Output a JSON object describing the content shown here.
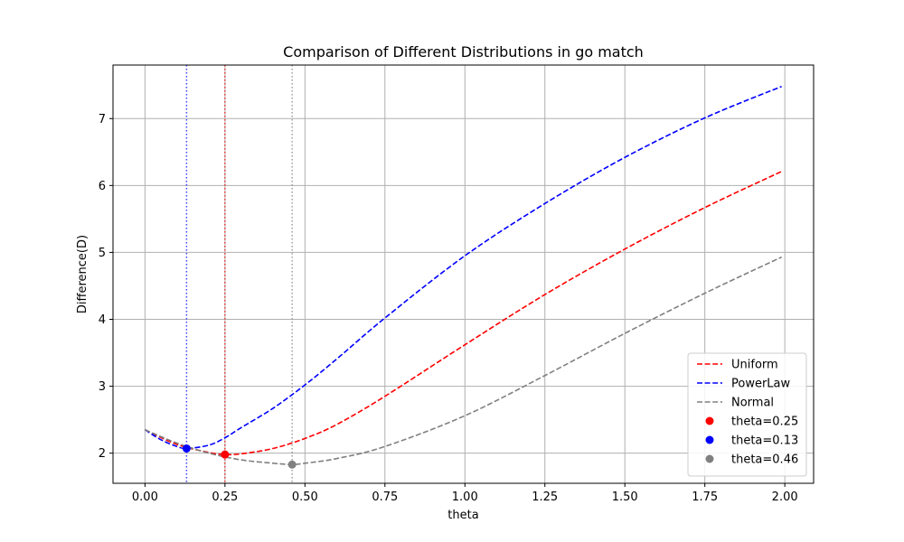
{
  "chart_data": {
    "type": "line",
    "title": "Comparison of Different Distributions in go match",
    "xlabel": "theta",
    "ylabel": "Difference(D)",
    "xlim": [
      -0.1,
      2.09
    ],
    "ylim": [
      1.55,
      7.8
    ],
    "xticks": [
      0.0,
      0.25,
      0.5,
      0.75,
      1.0,
      1.25,
      1.5,
      1.75,
      2.0
    ],
    "xtick_labels": [
      "0.00",
      "0.25",
      "0.50",
      "0.75",
      "1.00",
      "1.25",
      "1.50",
      "1.75",
      "2.00"
    ],
    "yticks": [
      2,
      3,
      4,
      5,
      6,
      7
    ],
    "ytick_labels": [
      "2",
      "3",
      "4",
      "5",
      "6",
      "7"
    ],
    "grid": true,
    "legend_position": "bottom-right",
    "series": [
      {
        "name": "Uniform",
        "color": "#ff0000",
        "style": "dashed",
        "x": [
          0.0,
          0.1,
          0.2,
          0.25,
          0.3,
          0.4,
          0.5,
          0.6,
          0.75,
          1.0,
          1.25,
          1.5,
          1.75,
          1.99
        ],
        "y": [
          2.35,
          2.13,
          2.01,
          1.98,
          1.99,
          2.07,
          2.22,
          2.43,
          2.85,
          3.62,
          4.37,
          5.05,
          5.67,
          6.21
        ]
      },
      {
        "name": "PowerLaw",
        "color": "#0000ff",
        "style": "dashed",
        "x": [
          0.0,
          0.05,
          0.1,
          0.13,
          0.2,
          0.25,
          0.3,
          0.4,
          0.5,
          0.6,
          0.75,
          1.0,
          1.25,
          1.5,
          1.75,
          1.99
        ],
        "y": [
          2.35,
          2.2,
          2.1,
          2.07,
          2.12,
          2.23,
          2.38,
          2.67,
          3.02,
          3.41,
          4.02,
          4.95,
          5.73,
          6.42,
          7.01,
          7.48
        ]
      },
      {
        "name": "Normal",
        "color": "#808080",
        "style": "dashed",
        "x": [
          0.0,
          0.1,
          0.2,
          0.3,
          0.4,
          0.46,
          0.5,
          0.6,
          0.75,
          1.0,
          1.25,
          1.5,
          1.75,
          1.99
        ],
        "y": [
          2.35,
          2.15,
          2.0,
          1.9,
          1.85,
          1.83,
          1.85,
          1.92,
          2.1,
          2.56,
          3.16,
          3.79,
          4.39,
          4.93
        ]
      }
    ],
    "markers": [
      {
        "label": "theta=0.25",
        "color": "#ff0000",
        "vline_color": "#ff0000",
        "x": 0.25,
        "y": 1.98
      },
      {
        "label": "theta=0.13",
        "color": "#0000ff",
        "vline_color": "#0000ff",
        "x": 0.13,
        "y": 2.07
      },
      {
        "label": "theta=0.46",
        "color": "#808080",
        "vline_color": "#808080",
        "x": 0.46,
        "y": 1.83
      }
    ]
  }
}
